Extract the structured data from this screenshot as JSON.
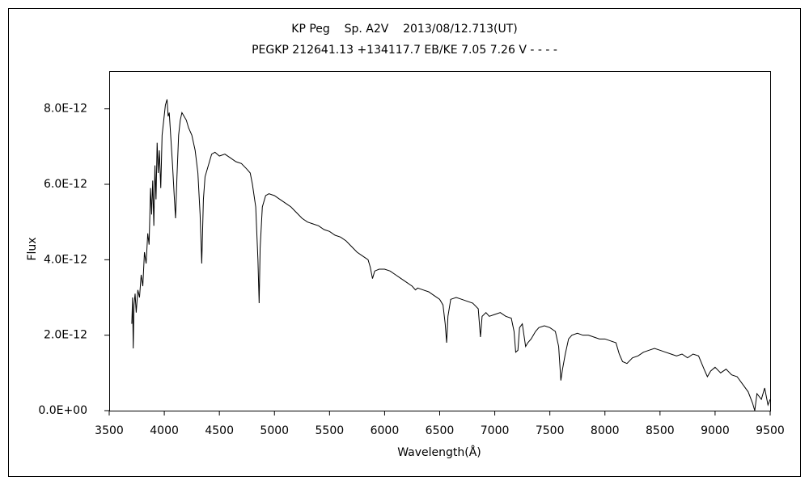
{
  "chart_data": {
    "type": "line",
    "title": "KP Peg    Sp. A2V    2013/08/12.713(UT)",
    "subtitle": "PEGKP 212641.13 +134117.7 EB/KE 7.05 7.26 V - - - -",
    "xlabel": "Wavelength(Å)",
    "ylabel": "Flux",
    "xlim": [
      3500,
      9500
    ],
    "xticks": [
      3500,
      4000,
      4500,
      5000,
      5500,
      6000,
      6500,
      7000,
      7500,
      8000,
      8500,
      9000,
      9500
    ],
    "ylim": [
      0,
      9e-12
    ],
    "yticks": [
      {
        "value": 0,
        "label": "0.0E+00"
      },
      {
        "value": 2e-12,
        "label": "2.0E-12"
      },
      {
        "value": 4e-12,
        "label": "4.0E-12"
      },
      {
        "value": 6e-12,
        "label": "6.0E-12"
      },
      {
        "value": 8e-12,
        "label": "8.0E-12"
      }
    ],
    "grid": false,
    "x": [
      3705,
      3712,
      3718,
      3725,
      3735,
      3745,
      3760,
      3775,
      3790,
      3805,
      3820,
      3835,
      3850,
      3862,
      3875,
      3885,
      3895,
      3905,
      3915,
      3925,
      3935,
      3945,
      3955,
      3968,
      3980,
      3995,
      4010,
      4025,
      4035,
      4045,
      4060,
      4075,
      4090,
      4102,
      4115,
      4130,
      4145,
      4160,
      4180,
      4200,
      4220,
      4250,
      4280,
      4305,
      4325,
      4340,
      4355,
      4370,
      4400,
      4430,
      4460,
      4500,
      4550,
      4600,
      4650,
      4700,
      4750,
      4780,
      4800,
      4830,
      4850,
      4861,
      4870,
      4890,
      4920,
      4950,
      5000,
      5050,
      5100,
      5150,
      5200,
      5250,
      5300,
      5350,
      5400,
      5450,
      5500,
      5550,
      5600,
      5650,
      5700,
      5750,
      5800,
      5850,
      5870,
      5890,
      5910,
      5950,
      6000,
      6050,
      6100,
      6150,
      6200,
      6250,
      6280,
      6300,
      6350,
      6400,
      6450,
      6500,
      6530,
      6550,
      6563,
      6575,
      6600,
      6650,
      6700,
      6750,
      6800,
      6850,
      6870,
      6885,
      6920,
      6950,
      7000,
      7050,
      7100,
      7150,
      7175,
      7190,
      7210,
      7225,
      7250,
      7280,
      7300,
      7330,
      7370,
      7400,
      7450,
      7500,
      7550,
      7580,
      7600,
      7615,
      7640,
      7670,
      7700,
      7750,
      7800,
      7850,
      7900,
      7950,
      8000,
      8050,
      8100,
      8130,
      8160,
      8200,
      8250,
      8300,
      8350,
      8400,
      8450,
      8500,
      8550,
      8600,
      8650,
      8700,
      8750,
      8800,
      8850,
      8900,
      8930,
      8960,
      9000,
      9050,
      9100,
      9150,
      9200,
      9250,
      9300,
      9340,
      9360,
      9380,
      9420,
      9450,
      9480,
      9500
    ],
    "series": [
      {
        "color": "#000000",
        "values": [
          2.3e-12,
          3e-12,
          1.65e-12,
          2.8e-12,
          3.1e-12,
          2.6e-12,
          3.2e-12,
          3e-12,
          3.6e-12,
          3.3e-12,
          4.2e-12,
          3.9e-12,
          4.7e-12,
          4.4e-12,
          5.9e-12,
          5.2e-12,
          6.1e-12,
          4.9e-12,
          6.5e-12,
          5.6e-12,
          7.1e-12,
          6.3e-12,
          6.9e-12,
          5.9e-12,
          7.3e-12,
          7.7e-12,
          8.1e-12,
          8.25e-12,
          7.8e-12,
          7.9e-12,
          7.2e-12,
          6.5e-12,
          5.7e-12,
          5.1e-12,
          6.2e-12,
          7.3e-12,
          7.7e-12,
          7.9e-12,
          7.8e-12,
          7.7e-12,
          7.5e-12,
          7.3e-12,
          6.9e-12,
          6.3e-12,
          5.2e-12,
          3.9e-12,
          5.6e-12,
          6.2e-12,
          6.5e-12,
          6.8e-12,
          6.85e-12,
          6.75e-12,
          6.8e-12,
          6.7e-12,
          6.6e-12,
          6.55e-12,
          6.4e-12,
          6.3e-12,
          6e-12,
          5.4e-12,
          4e-12,
          2.85e-12,
          4.3e-12,
          5.4e-12,
          5.7e-12,
          5.75e-12,
          5.7e-12,
          5.6e-12,
          5.5e-12,
          5.4e-12,
          5.25e-12,
          5.1e-12,
          5e-12,
          4.95e-12,
          4.9e-12,
          4.8e-12,
          4.75e-12,
          4.65e-12,
          4.6e-12,
          4.5e-12,
          4.35e-12,
          4.2e-12,
          4.1e-12,
          4e-12,
          3.8e-12,
          3.5e-12,
          3.7e-12,
          3.75e-12,
          3.75e-12,
          3.7e-12,
          3.6e-12,
          3.5e-12,
          3.4e-12,
          3.3e-12,
          3.2e-12,
          3.25e-12,
          3.2e-12,
          3.15e-12,
          3.05e-12,
          2.95e-12,
          2.8e-12,
          2.3e-12,
          1.8e-12,
          2.5e-12,
          2.95e-12,
          3e-12,
          2.95e-12,
          2.9e-12,
          2.85e-12,
          2.7e-12,
          1.95e-12,
          2.5e-12,
          2.6e-12,
          2.5e-12,
          2.55e-12,
          2.6e-12,
          2.5e-12,
          2.45e-12,
          2.1e-12,
          1.55e-12,
          1.6e-12,
          2.2e-12,
          2.3e-12,
          1.7e-12,
          1.8e-12,
          1.9e-12,
          2.1e-12,
          2.2e-12,
          2.25e-12,
          2.2e-12,
          2.1e-12,
          1.7e-12,
          8e-13,
          1.1e-12,
          1.5e-12,
          1.9e-12,
          2e-12,
          2.05e-12,
          2e-12,
          2e-12,
          1.95e-12,
          1.9e-12,
          1.9e-12,
          1.85e-12,
          1.8e-12,
          1.5e-12,
          1.3e-12,
          1.25e-12,
          1.4e-12,
          1.45e-12,
          1.55e-12,
          1.6e-12,
          1.65e-12,
          1.6e-12,
          1.55e-12,
          1.5e-12,
          1.45e-12,
          1.5e-12,
          1.4e-12,
          1.5e-12,
          1.45e-12,
          1.1e-12,
          9e-13,
          1.05e-12,
          1.15e-12,
          1e-12,
          1.1e-12,
          9.5e-13,
          9e-13,
          7e-13,
          5e-13,
          2e-13,
          0,
          4.5e-13,
          3e-13,
          6e-13,
          1.5e-13,
          3e-13
        ]
      }
    ]
  }
}
